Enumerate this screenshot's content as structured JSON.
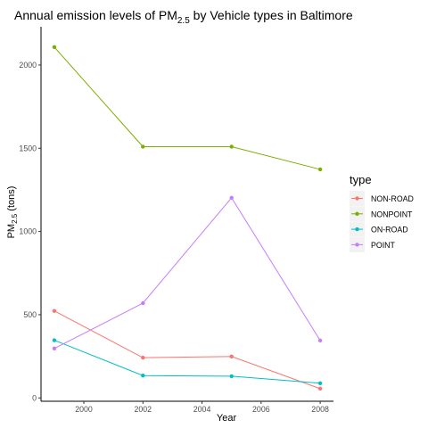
{
  "chart_data": {
    "type": "line",
    "title": {
      "prefix": "Annual emission levels of PM",
      "subscript": "2.5",
      "suffix": " by Vehicle types in Baltimore"
    },
    "xlabel": "Year",
    "ylabel": {
      "prefix": "PM",
      "subscript": "2.5",
      "suffix": " (tons)"
    },
    "x": [
      1999,
      2002,
      2005,
      2008
    ],
    "xlim": [
      1998.55,
      2008.45
    ],
    "ylim": [
      -20,
      2230
    ],
    "x_ticks": [
      2000,
      2002,
      2004,
      2006,
      2008
    ],
    "x_tick_labels": [
      "2000",
      "2002",
      "2004",
      "2006",
      "2008"
    ],
    "y_ticks": [
      0,
      500,
      1000,
      1500,
      2000
    ],
    "y_tick_labels": [
      "0",
      "500",
      "1000",
      "1500",
      "2000"
    ],
    "grid": false,
    "legend_placement": "right",
    "legend_title": "type",
    "series": [
      {
        "name": "NON-ROAD",
        "color": "#f8766d",
        "values": [
          522.9,
          241.8,
          248.9,
          55.8
        ]
      },
      {
        "name": "NONPOINT",
        "color": "#7cae00",
        "values": [
          2107.6,
          1509.5,
          1509.5,
          1373.2
        ]
      },
      {
        "name": "ON-ROAD",
        "color": "#00bfc4",
        "values": [
          346.8,
          134.3,
          130.4,
          88.3
        ]
      },
      {
        "name": "POINT",
        "color": "#c77cff",
        "values": [
          296.8,
          569.3,
          1202.5,
          344.98
        ]
      }
    ]
  }
}
